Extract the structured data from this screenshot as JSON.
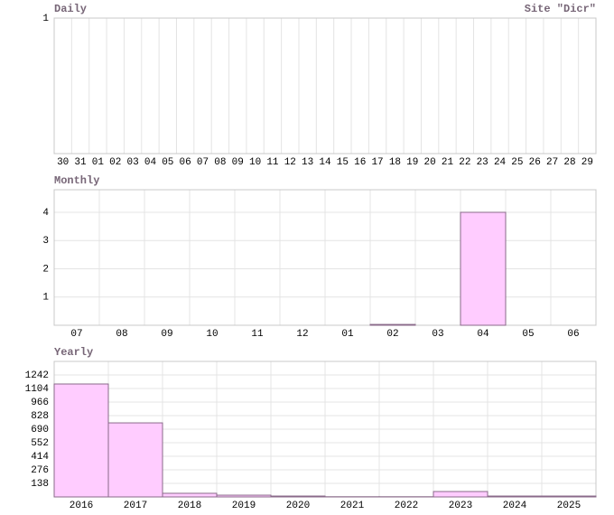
{
  "chart_data": [
    {
      "type": "bar",
      "title": "Daily",
      "subtitle": "Site \"Dicr\"",
      "categories": [
        "30",
        "31",
        "01",
        "02",
        "03",
        "04",
        "05",
        "06",
        "07",
        "08",
        "09",
        "10",
        "11",
        "12",
        "13",
        "14",
        "15",
        "16",
        "17",
        "18",
        "19",
        "20",
        "21",
        "22",
        "23",
        "24",
        "25",
        "26",
        "27",
        "28",
        "29"
      ],
      "values": [
        0,
        0,
        0,
        0,
        0,
        0,
        0,
        0,
        0,
        0,
        0,
        0,
        0,
        0,
        0,
        0,
        0,
        0,
        0,
        0,
        0,
        0,
        0,
        0,
        0,
        0,
        0,
        0,
        0,
        0,
        0
      ],
      "color": "#ffccff",
      "ylim": [
        0,
        1
      ],
      "yticks": [
        1
      ],
      "grid": true
    },
    {
      "type": "bar",
      "title": "Monthly",
      "categories": [
        "07",
        "08",
        "09",
        "10",
        "11",
        "12",
        "01",
        "02",
        "03",
        "04",
        "05",
        "06"
      ],
      "values": [
        0,
        0,
        0,
        0,
        0,
        0,
        0,
        0.03,
        0,
        4,
        0,
        0
      ],
      "color": "#ffccff",
      "ylim": [
        0,
        4.8
      ],
      "yticks": [
        1,
        2,
        3,
        4
      ],
      "grid": true
    },
    {
      "type": "bar",
      "title": "Yearly",
      "categories": [
        "2016",
        "2017",
        "2018",
        "2019",
        "2020",
        "2021",
        "2022",
        "2023",
        "2024",
        "2025"
      ],
      "values": [
        1150,
        754,
        37,
        18,
        9,
        2,
        2,
        55,
        9,
        9
      ],
      "color": "#ffccff",
      "ylim": [
        0,
        1380
      ],
      "yticks": [
        138,
        276,
        414,
        552,
        690,
        828,
        966,
        1104,
        1242
      ],
      "grid": true
    }
  ]
}
